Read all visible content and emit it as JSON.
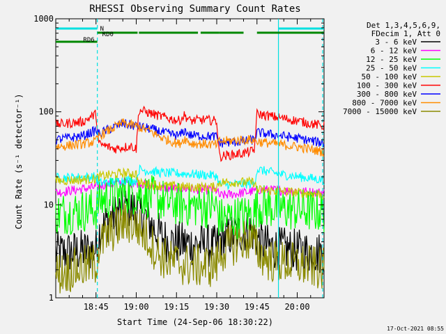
{
  "chart_data": {
    "type": "line",
    "title": "RHESSI Observing Summary Count Rates",
    "xlabel": "Start Time (24-Sep-06 18:30:22)",
    "ylabel": "Count Rate (s⁻¹ detector⁻¹)",
    "yscale": "log",
    "ylim": [
      1,
      1000
    ],
    "xlim_minutes": [
      0,
      100
    ],
    "x_ticks": [
      {
        "label": "18:45",
        "t": 15
      },
      {
        "label": "19:00",
        "t": 30
      },
      {
        "label": "19:15",
        "t": 45
      },
      {
        "label": "19:30",
        "t": 60
      },
      {
        "label": "19:45",
        "t": 75
      },
      {
        "label": "20:00",
        "t": 90
      }
    ],
    "y_ticks": [
      {
        "label": "1",
        "v": 1
      },
      {
        "label": "10",
        "v": 10
      },
      {
        "label": "100",
        "v": 100
      },
      {
        "label": "1000",
        "v": 1000
      }
    ],
    "legend": {
      "position": "top-right",
      "header": [
        "Det 1,3,4,5,6,9,",
        "FDecim 1, Att 0"
      ]
    },
    "series": [
      {
        "name": "3 - 6 keV",
        "color": "#000000",
        "points": [
          [
            0,
            3.0
          ],
          [
            15,
            3.3
          ],
          [
            16,
            5
          ],
          [
            20,
            7
          ],
          [
            26,
            9.5
          ],
          [
            30,
            9
          ],
          [
            34,
            7
          ],
          [
            38,
            5
          ],
          [
            42,
            4
          ],
          [
            50,
            3.8
          ],
          [
            58,
            3.6
          ],
          [
            60,
            3.5
          ],
          [
            61,
            4.2
          ],
          [
            66,
            4.8
          ],
          [
            70,
            5.2
          ],
          [
            73,
            5.3
          ],
          [
            76,
            4
          ],
          [
            80,
            3.5
          ],
          [
            90,
            3.2
          ],
          [
            100,
            3.0
          ]
        ]
      },
      {
        "name": "6 - 12 keV",
        "color": "#ff00ff",
        "points": [
          [
            0,
            13.5
          ],
          [
            15,
            15.5
          ],
          [
            16,
            16
          ],
          [
            25,
            17.5
          ],
          [
            30,
            17.3
          ],
          [
            36,
            16
          ],
          [
            40,
            15.2
          ],
          [
            50,
            14.8
          ],
          [
            60,
            14.3
          ],
          [
            61,
            12.5
          ],
          [
            70,
            13.5
          ],
          [
            74,
            14
          ],
          [
            76,
            14.6
          ],
          [
            90,
            14
          ],
          [
            100,
            13.5
          ]
        ]
      },
      {
        "name": "12 - 25 keV",
        "color": "#00ff00",
        "points": [
          [
            0,
            8
          ],
          [
            15,
            9
          ],
          [
            16,
            11
          ],
          [
            20,
            12
          ],
          [
            27,
            13.5
          ],
          [
            32,
            13
          ],
          [
            38,
            11.5
          ],
          [
            45,
            10.2
          ],
          [
            55,
            9.6
          ],
          [
            60,
            9.4
          ],
          [
            61,
            7
          ],
          [
            70,
            7.5
          ],
          [
            74,
            8
          ],
          [
            75,
            10
          ],
          [
            85,
            9
          ],
          [
            100,
            8.5
          ]
        ]
      },
      {
        "name": "25 - 50 keV",
        "color": "#00ffff",
        "points": [
          [
            0,
            19.5
          ],
          [
            15,
            20
          ],
          [
            16,
            17
          ],
          [
            26,
            18.5
          ],
          [
            30,
            18
          ],
          [
            31,
            24
          ],
          [
            40,
            22
          ],
          [
            50,
            21.5
          ],
          [
            60,
            20.5
          ],
          [
            61,
            16.5
          ],
          [
            74,
            16.8
          ],
          [
            75,
            24
          ],
          [
            85,
            21
          ],
          [
            100,
            18.5
          ]
        ]
      },
      {
        "name": "50 - 100 keV",
        "color": "#c8c800",
        "points": [
          [
            0,
            18
          ],
          [
            15,
            19
          ],
          [
            16,
            20
          ],
          [
            25,
            22
          ],
          [
            30,
            21.5
          ],
          [
            31,
            17
          ],
          [
            40,
            16
          ],
          [
            50,
            15.5
          ],
          [
            60,
            15.5
          ],
          [
            61,
            17.5
          ],
          [
            74,
            17.5
          ],
          [
            75,
            14.5
          ],
          [
            100,
            13
          ]
        ]
      },
      {
        "name": "100 - 300 keV",
        "color": "#ff0000",
        "points": [
          [
            0,
            73
          ],
          [
            10,
            78
          ],
          [
            15,
            95
          ],
          [
            16,
            45
          ],
          [
            22,
            40
          ],
          [
            28,
            43
          ],
          [
            30,
            40
          ],
          [
            31,
            105
          ],
          [
            40,
            88
          ],
          [
            46,
            80
          ],
          [
            48,
            92
          ],
          [
            50,
            80
          ],
          [
            55,
            82
          ],
          [
            60,
            80
          ],
          [
            61,
            33
          ],
          [
            70,
            36
          ],
          [
            74,
            38
          ],
          [
            75,
            95
          ],
          [
            90,
            80
          ],
          [
            100,
            70
          ]
        ]
      },
      {
        "name": "300 - 800 keV",
        "color": "#0000ff",
        "points": [
          [
            0,
            50
          ],
          [
            10,
            55
          ],
          [
            15,
            63
          ],
          [
            16,
            58
          ],
          [
            25,
            75
          ],
          [
            30,
            70
          ],
          [
            35,
            66
          ],
          [
            40,
            60
          ],
          [
            46,
            55
          ],
          [
            48,
            63
          ],
          [
            50,
            56
          ],
          [
            55,
            55
          ],
          [
            60,
            54
          ],
          [
            61,
            46
          ],
          [
            70,
            48
          ],
          [
            74,
            50
          ],
          [
            75,
            60
          ],
          [
            90,
            52
          ],
          [
            100,
            46
          ]
        ]
      },
      {
        "name": "800 - 7000 keV",
        "color": "#ff8c00",
        "points": [
          [
            0,
            42
          ],
          [
            10,
            45
          ],
          [
            15,
            48
          ],
          [
            16,
            55
          ],
          [
            25,
            76
          ],
          [
            30,
            70
          ],
          [
            35,
            62
          ],
          [
            40,
            52
          ],
          [
            46,
            45
          ],
          [
            48,
            52
          ],
          [
            50,
            46
          ],
          [
            55,
            45
          ],
          [
            60,
            44
          ],
          [
            61,
            48
          ],
          [
            70,
            50
          ],
          [
            74,
            50
          ],
          [
            75,
            48
          ],
          [
            90,
            42
          ],
          [
            100,
            37
          ]
        ]
      },
      {
        "name": "7000 - 15000 keV",
        "color": "#8b8b00",
        "points": [
          [
            0,
            1.8
          ],
          [
            15,
            2.3
          ],
          [
            16,
            3.5
          ],
          [
            20,
            5
          ],
          [
            26,
            6.5
          ],
          [
            30,
            6
          ],
          [
            34,
            4.5
          ],
          [
            38,
            3
          ],
          [
            42,
            2.5
          ],
          [
            50,
            2.2
          ],
          [
            58,
            2.2
          ],
          [
            60,
            2.3
          ],
          [
            61,
            3
          ],
          [
            66,
            3.8
          ],
          [
            70,
            4.2
          ],
          [
            73,
            4.2
          ],
          [
            76,
            3
          ],
          [
            80,
            2.5
          ],
          [
            90,
            2.3
          ],
          [
            100,
            2.0
          ]
        ]
      }
    ],
    "flag_bars": [
      {
        "label": "N",
        "color": "#00e0e0",
        "segments": [
          [
            0,
            15.5
          ],
          [
            83,
            100
          ]
        ]
      },
      {
        "label": "RD0",
        "color": "#008800",
        "segments": [
          [
            15.5,
            30.5
          ],
          [
            31,
            53
          ],
          [
            54,
            61
          ],
          [
            61,
            70
          ],
          [
            75,
            100
          ]
        ]
      },
      {
        "label": "RD6",
        "color": "#008800",
        "segments": [
          [
            0,
            15.5
          ]
        ]
      }
    ],
    "markers": [
      {
        "t": 15.5,
        "color": "#00e0e0",
        "style": "dashed"
      },
      {
        "t": 83,
        "color": "#00e0e0",
        "style": "solid"
      },
      {
        "t": 99.5,
        "color": "#00e0e0",
        "style": "dashed"
      }
    ]
  },
  "footer": {
    "timestamp": "17-Oct-2021 08:55"
  }
}
